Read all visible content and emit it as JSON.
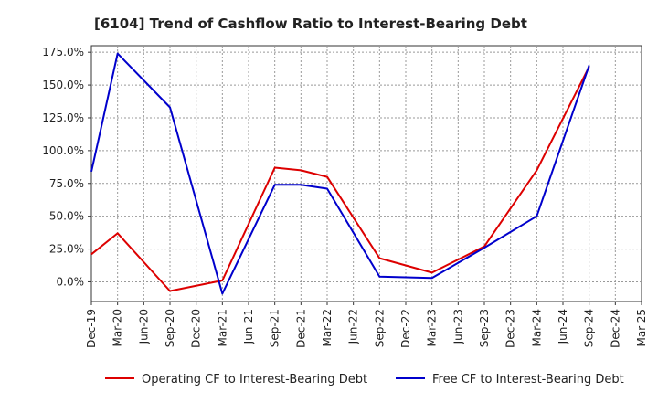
{
  "chart_data": {
    "type": "line",
    "title": "[6104]  Trend of Cashflow Ratio to Interest-Bearing Debt",
    "xlabel": "",
    "ylabel": "",
    "categories": [
      "Dec-19",
      "Mar-20",
      "Jun-20",
      "Sep-20",
      "Dec-20",
      "Mar-21",
      "Jun-21",
      "Sep-21",
      "Dec-21",
      "Mar-22",
      "Jun-22",
      "Sep-22",
      "Dec-22",
      "Mar-23",
      "Jun-23",
      "Sep-23",
      "Dec-23",
      "Mar-24",
      "Jun-24",
      "Sep-24",
      "Dec-24",
      "Mar-25"
    ],
    "ylim": [
      -15,
      180
    ],
    "yticks": [
      0,
      25,
      50,
      75,
      100,
      125,
      150,
      175
    ],
    "ytick_labels": [
      "0.0%",
      "25.0%",
      "50.0%",
      "75.0%",
      "100.0%",
      "125.0%",
      "150.0%",
      "175.0%"
    ],
    "grid": true,
    "legend_position": "bottom",
    "series": [
      {
        "name": "Operating CF to Interest-Bearing Debt",
        "color": "#dd0000",
        "values": [
          21,
          37,
          null,
          -7,
          null,
          1,
          null,
          87,
          85,
          80,
          null,
          18,
          null,
          7,
          null,
          27,
          null,
          85,
          null,
          164,
          null,
          null
        ]
      },
      {
        "name": "Free CF to Interest-Bearing Debt",
        "color": "#0000cc",
        "values": [
          84,
          174,
          null,
          133,
          null,
          -9,
          null,
          74,
          74,
          71,
          null,
          4,
          null,
          3,
          null,
          26,
          null,
          50,
          null,
          165,
          null,
          null
        ]
      }
    ]
  }
}
